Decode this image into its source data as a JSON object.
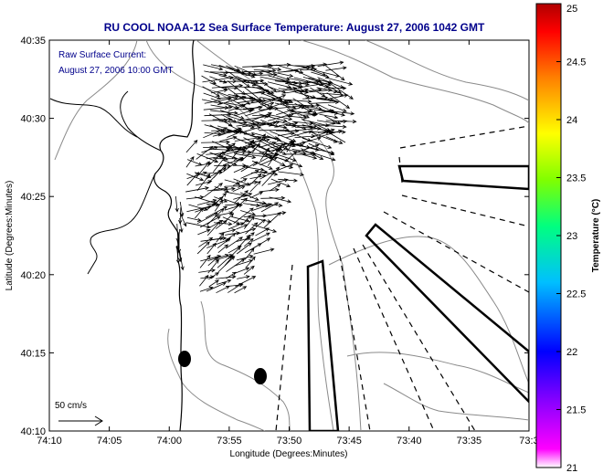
{
  "chart_data": {
    "type": "map",
    "title": "RU COOL  NOAA-12  Sea Surface Temperature:  August 27, 2006 1042 GMT",
    "xlabel": "Longitude (Degrees:Minutes)",
    "ylabel": "Latitude (Degrees:Minutes)",
    "x_ticks": [
      "74:10",
      "74:05",
      "74:00",
      "73:55",
      "73:50",
      "73:45",
      "73:40",
      "73:35",
      "73:3"
    ],
    "y_ticks": [
      "40:10",
      "40:15",
      "40:20",
      "40:25",
      "40:30",
      "40:35"
    ],
    "xlim_deg": [
      -74.1667,
      -73.5
    ],
    "ylim_deg": [
      40.1667,
      40.5833
    ],
    "annotation_lines": [
      "Raw Surface Current:",
      "August 27, 2006 10:00 GMT"
    ],
    "scale_label": "50 cm/s",
    "colorbar": {
      "label": "Temperature (°C)",
      "min": 21,
      "max": 25,
      "ticks": [
        "21",
        "21.5",
        "22",
        "22.5",
        "23",
        "23.5",
        "24",
        "24.5",
        "25"
      ]
    },
    "colors": {
      "title": "#00008b",
      "coast": "#000000",
      "bathymetry": "#808080",
      "vectors": "#000000"
    }
  }
}
